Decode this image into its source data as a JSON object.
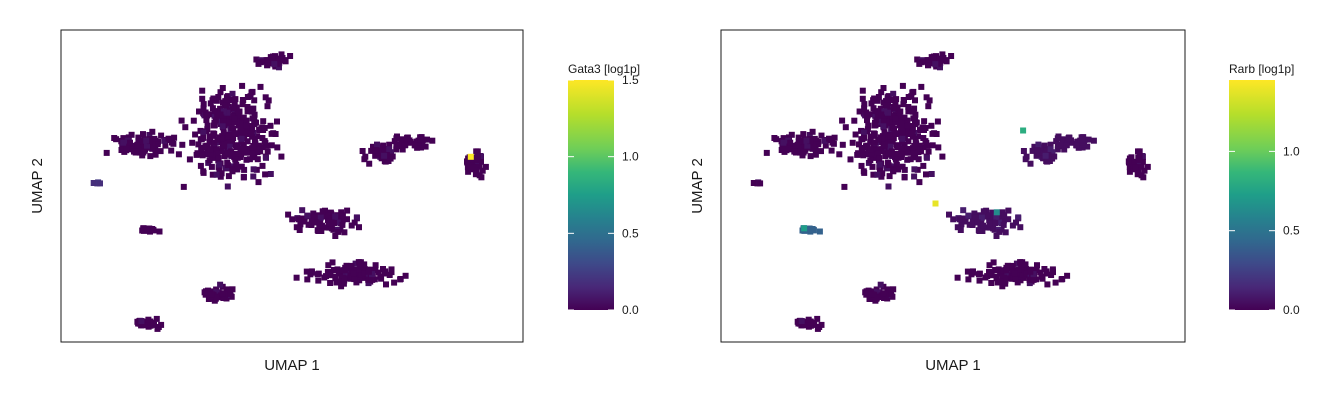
{
  "chart_data": [
    {
      "type": "scatter",
      "title": "",
      "xlabel": "UMAP 1",
      "ylabel": "UMAP 2",
      "colorbar": {
        "label": "Gata3 [log1p]",
        "ticks": [
          "0.0",
          "0.5",
          "1.0",
          "1.5"
        ],
        "tick_values": [
          0,
          0.5,
          1.0,
          1.5
        ],
        "range": [
          0,
          1.5
        ],
        "colormap": "viridis"
      },
      "clusters": [
        {
          "cx": 0.36,
          "cy": 0.67,
          "rx": 0.13,
          "ry": 0.2,
          "value": 0.0,
          "n": 330
        },
        {
          "cx": 0.16,
          "cy": 0.64,
          "rx": 0.1,
          "ry": 0.05,
          "value": 0.0,
          "n": 90
        },
        {
          "cx": 0.46,
          "cy": 0.93,
          "rx": 0.05,
          "ry": 0.03,
          "value": 0.0,
          "n": 45
        },
        {
          "cx": 0.7,
          "cy": 0.61,
          "rx": 0.05,
          "ry": 0.05,
          "value": 0.0,
          "n": 45
        },
        {
          "cx": 0.78,
          "cy": 0.65,
          "rx": 0.06,
          "ry": 0.04,
          "value": 0.0,
          "n": 45
        },
        {
          "cx": 0.92,
          "cy": 0.58,
          "rx": 0.03,
          "ry": 0.06,
          "value": 0.0,
          "n": 40
        },
        {
          "cx": 0.57,
          "cy": 0.38,
          "rx": 0.1,
          "ry": 0.06,
          "value": 0.0,
          "n": 90
        },
        {
          "cx": 0.64,
          "cy": 0.2,
          "rx": 0.15,
          "ry": 0.05,
          "value": 0.0,
          "n": 120
        },
        {
          "cx": 0.33,
          "cy": 0.13,
          "rx": 0.06,
          "ry": 0.04,
          "value": 0.0,
          "n": 45
        },
        {
          "cx": 0.17,
          "cy": 0.03,
          "rx": 0.04,
          "ry": 0.03,
          "value": 0.0,
          "n": 30
        },
        {
          "cx": 0.175,
          "cy": 0.35,
          "rx": 0.035,
          "ry": 0.015,
          "value": 0.0,
          "n": 14
        },
        {
          "cx": 0.05,
          "cy": 0.51,
          "rx": 0.015,
          "ry": 0.01,
          "value": 0.2,
          "n": 4
        }
      ],
      "highlights": [
        {
          "x": 0.91,
          "y": 0.6,
          "value": 1.5
        }
      ]
    },
    {
      "type": "scatter",
      "title": "",
      "xlabel": "UMAP 1",
      "ylabel": "UMAP 2",
      "colorbar": {
        "label": "Rarb [log1p]",
        "ticks": [
          "0.0",
          "0.5",
          "1.0"
        ],
        "tick_values": [
          0,
          0.5,
          1.0
        ],
        "range": [
          0,
          1.45
        ],
        "colormap": "viridis"
      },
      "clusters": [
        {
          "cx": 0.36,
          "cy": 0.67,
          "rx": 0.13,
          "ry": 0.2,
          "value": 0.0,
          "n": 330
        },
        {
          "cx": 0.16,
          "cy": 0.64,
          "rx": 0.1,
          "ry": 0.05,
          "value": 0.0,
          "n": 90
        },
        {
          "cx": 0.46,
          "cy": 0.93,
          "rx": 0.05,
          "ry": 0.03,
          "value": 0.0,
          "n": 45
        },
        {
          "cx": 0.7,
          "cy": 0.61,
          "rx": 0.05,
          "ry": 0.05,
          "value": 0.05,
          "n": 45
        },
        {
          "cx": 0.78,
          "cy": 0.65,
          "rx": 0.06,
          "ry": 0.04,
          "value": 0.05,
          "n": 45
        },
        {
          "cx": 0.92,
          "cy": 0.58,
          "rx": 0.03,
          "ry": 0.06,
          "value": 0.0,
          "n": 40
        },
        {
          "cx": 0.57,
          "cy": 0.38,
          "rx": 0.1,
          "ry": 0.06,
          "value": 0.05,
          "n": 90
        },
        {
          "cx": 0.64,
          "cy": 0.2,
          "rx": 0.15,
          "ry": 0.05,
          "value": 0.0,
          "n": 120
        },
        {
          "cx": 0.33,
          "cy": 0.13,
          "rx": 0.06,
          "ry": 0.04,
          "value": 0.0,
          "n": 45
        },
        {
          "cx": 0.17,
          "cy": 0.03,
          "rx": 0.04,
          "ry": 0.03,
          "value": 0.0,
          "n": 30
        },
        {
          "cx": 0.175,
          "cy": 0.35,
          "rx": 0.035,
          "ry": 0.015,
          "value": 0.45,
          "n": 14
        },
        {
          "cx": 0.05,
          "cy": 0.51,
          "rx": 0.015,
          "ry": 0.01,
          "value": 0.0,
          "n": 4
        }
      ],
      "highlights": [
        {
          "x": 0.46,
          "y": 0.44,
          "value": 1.4
        },
        {
          "x": 0.66,
          "y": 0.69,
          "value": 0.9
        },
        {
          "x": 0.6,
          "y": 0.41,
          "value": 0.7
        },
        {
          "x": 0.16,
          "y": 0.355,
          "value": 0.8
        }
      ]
    }
  ]
}
